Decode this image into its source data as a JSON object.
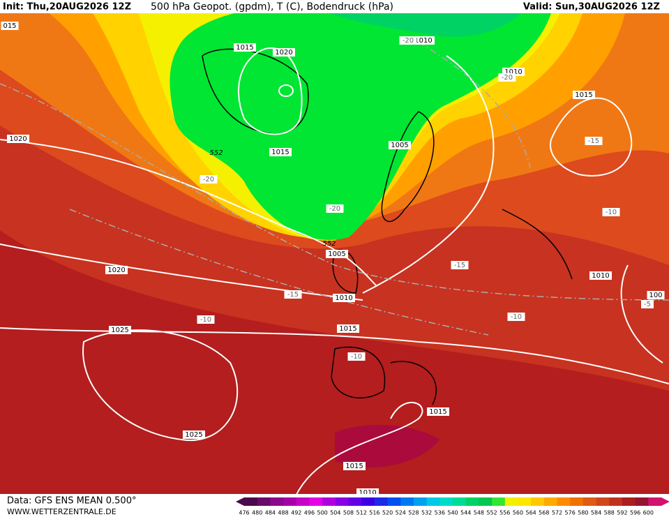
{
  "header": {
    "init": "Init: Thu,20AUG2026 12Z",
    "title": "500 hPa Geopot. (gpdm), T (C), Bodendruck (hPa)",
    "valid": "Valid: Sun,30AUG2026 12Z"
  },
  "footer": {
    "data": "Data: GFS ENS MEAN 0.500°",
    "site": "WWW.WETTERZENTRALE.DE"
  },
  "scale": {
    "labels": [
      476,
      480,
      484,
      488,
      492,
      496,
      500,
      504,
      508,
      512,
      516,
      520,
      524,
      528,
      532,
      536,
      540,
      544,
      548,
      552,
      556,
      560,
      564,
      568,
      572,
      576,
      580,
      584,
      588,
      592,
      596,
      600
    ],
    "colors": [
      "#4b0a4b",
      "#6a0a6a",
      "#8b0a8b",
      "#a800a8",
      "#c800c8",
      "#e600e6",
      "#b000e0",
      "#8a00e6",
      "#6400e6",
      "#3c00e6",
      "#1e28e6",
      "#0050f0",
      "#0078f0",
      "#00a0f0",
      "#00c8e6",
      "#00dcc8",
      "#00dc96",
      "#00d264",
      "#00c850",
      "#32e632",
      "#f0f000",
      "#ffe600",
      "#ffc800",
      "#ffaa00",
      "#ff8c00",
      "#f07000",
      "#e05a14",
      "#d2461e",
      "#c03220",
      "#aa1e1e",
      "#961432",
      "#d2146e"
    ]
  },
  "map_labels": {
    "isobars": [
      "015",
      "1015",
      "1020",
      "1010",
      "1010",
      "1015",
      "1020",
      "1015",
      "1005",
      "1005",
      "1010",
      "1020",
      "1010",
      "1015",
      "1025",
      "1025",
      "1015",
      "1015",
      "1010",
      "100"
    ],
    "temperatures": [
      "-20",
      "-20",
      "-20",
      "-20",
      "-15",
      "-15",
      "-15",
      "-10",
      "-10",
      "-10",
      "-10",
      "-5"
    ],
    "geopotential": [
      "552",
      "552"
    ]
  }
}
